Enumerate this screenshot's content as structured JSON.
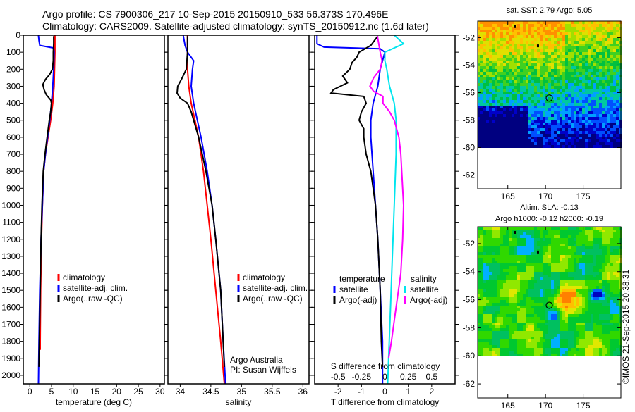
{
  "title": {
    "line1": "Argo profile: CS 7900306_217 10-Sep-2015 20150910_533 56.373S 170.496E",
    "line2": "Climatology: CARS2009. Satellite-adjusted climatology: synTS_20150912.nc (1.6d later)"
  },
  "credit": "©IMOS 21-Sep-2015 20:38:31",
  "colors": {
    "climatology": "#ff0000",
    "satellite": "#0000ff",
    "argo": "#000000",
    "salinity_satellite": "#00e5ee",
    "salinity_argo": "#ff00ff"
  },
  "chart_data": [
    {
      "type": "line",
      "name": "temperature",
      "xlabel": "temperature (deg C)",
      "xlim": [
        -1.5,
        31
      ],
      "ylim": [
        0,
        2050
      ],
      "yticks": [
        0,
        100,
        200,
        300,
        400,
        500,
        600,
        700,
        800,
        900,
        1000,
        1100,
        1200,
        1300,
        1400,
        1500,
        1600,
        1700,
        1800,
        1900,
        2000
      ],
      "xticks": [
        0,
        5,
        10,
        15,
        20,
        25,
        30
      ],
      "legend": [
        "climatology",
        "satellite-adj. clim.",
        "Argo(..raw -QC)"
      ],
      "series": [
        {
          "name": "climatology",
          "color": "#ff0000",
          "depth": [
            0,
            50,
            100,
            200,
            300,
            400,
            500,
            600,
            700,
            800,
            1000,
            1200,
            1500,
            1800,
            1850
          ],
          "value": [
            5.8,
            5.8,
            5.8,
            5.7,
            5.6,
            5.3,
            4.8,
            4.2,
            3.6,
            3.2,
            2.9,
            2.7,
            2.5,
            2.4,
            2.4
          ]
        },
        {
          "name": "satellite-adj. clim.",
          "color": "#0000ff",
          "depth": [
            0,
            30,
            60,
            75,
            100,
            200,
            300,
            400,
            500,
            600,
            700,
            800,
            1000,
            1200,
            1500,
            1800,
            2050
          ],
          "value": [
            2.0,
            2.1,
            2.3,
            5.5,
            5.6,
            5.5,
            5.3,
            5.0,
            4.6,
            4.1,
            3.6,
            3.2,
            2.9,
            2.6,
            2.3,
            2.1,
            2.0
          ]
        },
        {
          "name": "Argo(..raw -QC)",
          "color": "#000000",
          "depth": [
            5,
            50,
            100,
            150,
            200,
            230,
            260,
            290,
            320,
            350,
            380,
            400,
            450,
            500,
            600,
            700,
            800,
            1000,
            1200,
            1500,
            1800,
            1950
          ],
          "value": [
            5.5,
            5.5,
            5.4,
            5.4,
            5.2,
            4.6,
            3.6,
            3.0,
            3.3,
            3.8,
            4.8,
            5.0,
            4.8,
            4.5,
            4.0,
            3.5,
            3.1,
            2.8,
            2.6,
            2.4,
            2.2,
            2.1
          ]
        }
      ]
    },
    {
      "type": "line",
      "name": "salinity",
      "xlabel": "salinity",
      "xlim": [
        33.8,
        36.1
      ],
      "ylim": [
        0,
        2050
      ],
      "xticks": [
        34,
        34.5,
        35,
        35.5,
        36
      ],
      "legend": [
        "climatology",
        "satellite-adj. clim.",
        "Argo(..raw -QC)"
      ],
      "annotation": [
        "Argo Australia",
        "PI: Susan Wijffels"
      ],
      "series": [
        {
          "name": "climatology",
          "color": "#ff0000",
          "depth": [
            0,
            100,
            200,
            300,
            400,
            500,
            600,
            800,
            1000,
            1200,
            1500,
            1800,
            2050
          ],
          "value": [
            34.12,
            34.12,
            34.12,
            34.14,
            34.18,
            34.24,
            34.3,
            34.38,
            34.44,
            34.5,
            34.58,
            34.66,
            34.72
          ]
        },
        {
          "name": "satellite-adj. clim.",
          "color": "#0000ff",
          "depth": [
            0,
            60,
            100,
            150,
            200,
            300,
            400,
            500,
            600,
            800,
            1000,
            1200,
            1500,
            1800,
            2050
          ],
          "value": [
            34.05,
            34.08,
            34.12,
            34.22,
            34.2,
            34.18,
            34.22,
            34.28,
            34.34,
            34.44,
            34.52,
            34.58,
            34.66,
            34.7,
            34.74
          ]
        },
        {
          "name": "Argo(..raw -QC)",
          "color": "#000000",
          "depth": [
            5,
            100,
            200,
            260,
            300,
            340,
            370,
            400,
            450,
            500,
            600,
            800,
            1000,
            1200,
            1500,
            1800,
            1950
          ],
          "value": [
            34.12,
            34.12,
            34.1,
            34.02,
            33.96,
            33.95,
            34.0,
            34.12,
            34.18,
            34.22,
            34.3,
            34.42,
            34.52,
            34.58,
            34.66,
            34.7,
            34.72
          ]
        }
      ]
    },
    {
      "type": "line",
      "name": "difference",
      "xlabel": "T difference from climatology",
      "xlabel2": "S difference from climatology",
      "xlim": [
        -3,
        3
      ],
      "xlim_s": [
        -0.75,
        0.75
      ],
      "xticks": [
        -2,
        -1,
        0,
        1,
        2
      ],
      "xticks_s": [
        -0.5,
        -0.25,
        0,
        0.25,
        0.5
      ],
      "xticklabels_s": [
        "-0.5",
        "-0.25",
        "0",
        "0.25",
        "0.5"
      ],
      "legend_headers": [
        "temperature",
        "salinity"
      ],
      "legend": [
        "satellite",
        "Argo(-adj)",
        "satellite",
        "Argo(-adj)"
      ],
      "series": [
        {
          "name": "T satellite",
          "axis": "T",
          "color": "#0000ff",
          "depth": [
            0,
            50,
            70,
            80,
            100,
            150,
            200,
            300,
            400,
            500,
            600,
            800,
            1000,
            1200,
            1500,
            1800,
            2050
          ],
          "value": [
            -2.9,
            -2.9,
            -2.6,
            -0.2,
            0.0,
            -0.1,
            -0.2,
            -0.3,
            -0.5,
            -0.6,
            -0.6,
            -0.5,
            -0.4,
            -0.3,
            -0.2,
            -0.1,
            -0.1
          ]
        },
        {
          "name": "T Argo(-adj)",
          "axis": "T",
          "color": "#000000",
          "depth": [
            5,
            60,
            100,
            130,
            160,
            200,
            240,
            280,
            320,
            340,
            360,
            400,
            450,
            500,
            550,
            600,
            700,
            800,
            900,
            1000,
            1200,
            1500,
            1800,
            1950
          ],
          "value": [
            -0.3,
            -0.6,
            -1.1,
            -1.2,
            -1.4,
            -1.5,
            -1.8,
            -1.6,
            -2.2,
            -2.3,
            -0.9,
            -0.8,
            -1.0,
            -1.1,
            -0.9,
            -0.9,
            -0.8,
            -0.6,
            -0.5,
            -0.4,
            -0.3,
            -0.2,
            -0.15,
            -0.1
          ]
        },
        {
          "name": "S satellite",
          "axis": "S",
          "color": "#00e5ee",
          "depth": [
            0,
            50,
            100,
            150,
            200,
            300,
            400,
            500,
            700,
            1000,
            1300,
            1600,
            1900,
            2050
          ],
          "value": [
            0.1,
            0.2,
            0.0,
            0.0,
            0.02,
            0.05,
            0.1,
            0.12,
            0.12,
            0.1,
            0.08,
            0.06,
            0.04,
            0.03
          ]
        },
        {
          "name": "S Argo(-adj)",
          "axis": "S",
          "color": "#ff00ff",
          "depth": [
            5,
            100,
            150,
            200,
            250,
            300,
            330,
            360,
            400,
            450,
            500,
            600,
            700,
            800,
            1000,
            1200,
            1400,
            1600,
            1800,
            1900
          ],
          "value": [
            -0.08,
            -0.05,
            -0.03,
            -0.05,
            -0.12,
            -0.16,
            -0.12,
            -0.02,
            -0.02,
            0.05,
            0.1,
            0.15,
            0.17,
            0.18,
            0.2,
            0.19,
            0.17,
            0.12,
            0.07,
            0.04
          ]
        }
      ]
    },
    {
      "type": "heatmap",
      "name": "sst-map",
      "title": "sat. SST: 2.79 Argo: 5.05",
      "xlim": [
        161,
        180
      ],
      "ylim": [
        -63,
        -50.8
      ],
      "data_lat_min": -60,
      "xticks": [
        165,
        170,
        175
      ],
      "yticks": [
        -52,
        -54,
        -56,
        -58,
        -60,
        -62
      ],
      "profile": {
        "lon": 170.5,
        "lat": -56.4
      },
      "marks": [
        {
          "lon": 166,
          "lat": -51.2
        },
        {
          "lon": 169,
          "lat": -52.6
        }
      ]
    },
    {
      "type": "heatmap",
      "name": "sla-map",
      "title": "Altim. SLA: -0.13",
      "subtitle": "Argo h1000: -0.12 h2000: -0.19",
      "xlim": [
        161,
        180
      ],
      "ylim": [
        -63,
        -50.8
      ],
      "data_lat_min": -60,
      "xticks": [
        165,
        170,
        175
      ],
      "yticks": [
        -52,
        -54,
        -56,
        -58,
        -60,
        -62
      ],
      "profile": {
        "lon": 170.5,
        "lat": -56.4
      },
      "marks": [
        {
          "lon": 166,
          "lat": -51.2
        },
        {
          "lon": 169,
          "lat": -52.6
        }
      ]
    }
  ]
}
